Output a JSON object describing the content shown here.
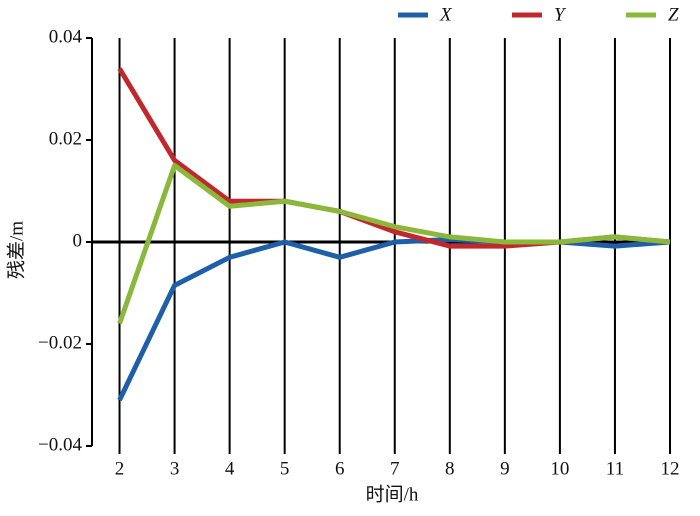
{
  "chart_data": {
    "type": "line",
    "x_label": "时间/h",
    "y_label": "残差/m",
    "x": [
      2,
      3,
      4,
      5,
      6,
      7,
      8,
      9,
      10,
      11,
      12
    ],
    "series": [
      {
        "name": "X",
        "color": "#1f5fa8",
        "values": [
          -0.031,
          -0.0085,
          -0.003,
          0,
          -0.003,
          0,
          0.0005,
          0,
          0,
          -0.0008,
          0
        ]
      },
      {
        "name": "Y",
        "color": "#c0282d",
        "values": [
          0.034,
          0.016,
          0.008,
          0.008,
          0.006,
          0.002,
          -0.0008,
          -0.0008,
          0,
          0.001,
          0
        ]
      },
      {
        "name": "Z",
        "color": "#8ab83a",
        "values": [
          -0.016,
          0.015,
          0.007,
          0.008,
          0.006,
          0.003,
          0.001,
          0,
          0,
          0.001,
          0
        ]
      }
    ],
    "xlim": [
      1.5,
      12
    ],
    "xticks": [
      2,
      3,
      4,
      5,
      6,
      7,
      8,
      9,
      10,
      11,
      12
    ],
    "ylim": [
      -0.04,
      0.04
    ],
    "yticks": [
      {
        "value": -0.04,
        "label": "−0.04"
      },
      {
        "value": -0.02,
        "label": "−0.02"
      },
      0,
      0.02,
      0.04
    ],
    "grid_x": true
  }
}
